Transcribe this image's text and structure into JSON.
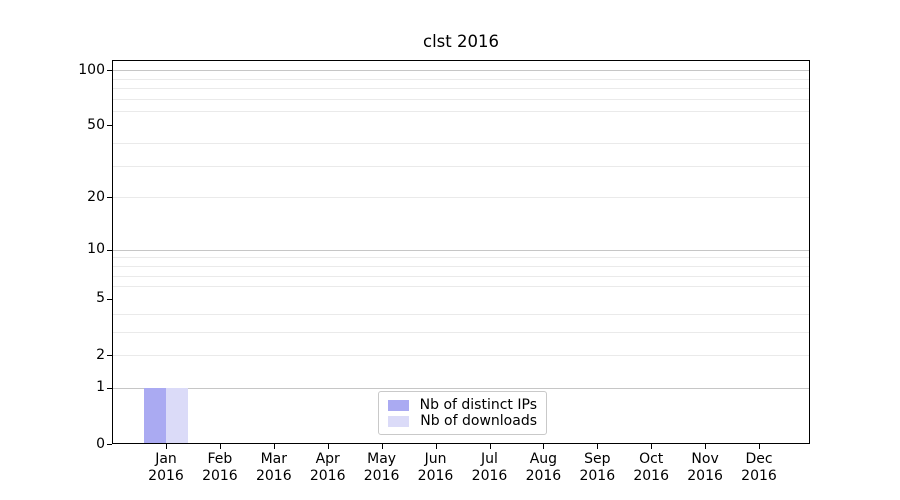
{
  "chart_data": {
    "type": "bar",
    "title": "clst 2016",
    "categories": [
      "Jan",
      "Feb",
      "Mar",
      "Apr",
      "May",
      "Jun",
      "Jul",
      "Aug",
      "Sep",
      "Oct",
      "Nov",
      "Dec"
    ],
    "year_label": "2016",
    "series": [
      {
        "name": "Nb of distinct IPs",
        "color": "#aaaaf2",
        "values": [
          1,
          0,
          0,
          0,
          0,
          0,
          0,
          0,
          0,
          0,
          0,
          0
        ]
      },
      {
        "name": "Nb of downloads",
        "color": "#dbdbf8",
        "values": [
          1,
          0,
          0,
          0,
          0,
          0,
          0,
          0,
          0,
          0,
          0,
          0
        ]
      }
    ],
    "yscale": "log1p",
    "ylim": [
      0,
      113
    ],
    "yticks": [
      0,
      1,
      2,
      5,
      10,
      20,
      50,
      100
    ],
    "ygrid_major": [
      1,
      10,
      100
    ],
    "ygrid_minor": [
      2,
      3,
      4,
      6,
      7,
      8,
      9,
      20,
      30,
      40,
      60,
      70,
      80,
      90
    ],
    "grid_on": true,
    "legend": {
      "position": "bottom-center",
      "entries": [
        "Nb of distinct IPs",
        "Nb of downloads"
      ]
    },
    "colors": {
      "background": "#ffffff",
      "axis": "#000000",
      "grid_major": "#c6c6c6",
      "grid_minor": "#eaeaea",
      "legend_border": "#c9c9c9"
    }
  }
}
